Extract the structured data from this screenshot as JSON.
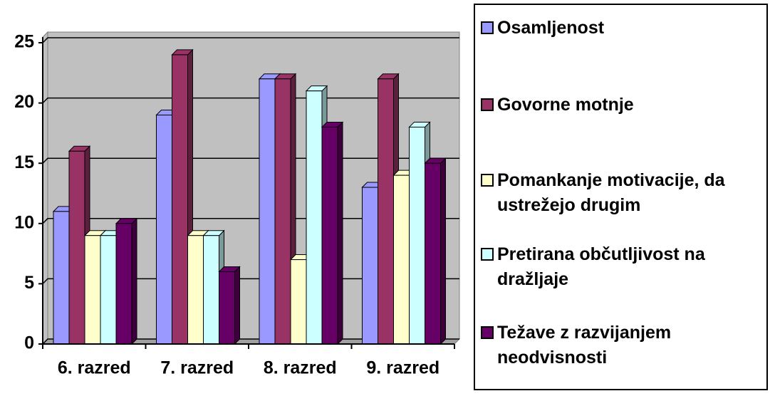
{
  "chart_data": {
    "type": "bar3d",
    "categories": [
      "6. razred",
      "7. razred",
      "8. razred",
      "9. razred"
    ],
    "series": [
      {
        "name": "Osamljenost",
        "color": "#9999ff",
        "values": [
          11,
          19,
          22,
          13
        ]
      },
      {
        "name": "Govorne motnje",
        "color": "#993366",
        "values": [
          16,
          24,
          22,
          22
        ]
      },
      {
        "name": "Pomankanje motivacije, da ustrežejo drugim",
        "color": "#ffffcc",
        "values": [
          9,
          9,
          7,
          14
        ]
      },
      {
        "name": "Pretirana občutljivost na dražljaje",
        "color": "#ccffff",
        "values": [
          9,
          9,
          21,
          18
        ]
      },
      {
        "name": "Težave z razvijanjem neodvisnosti",
        "color": "#660066",
        "values": [
          10,
          6,
          18,
          15
        ]
      }
    ],
    "ylim": [
      0,
      25
    ],
    "yticks": [
      0,
      5,
      10,
      15,
      20,
      25
    ],
    "grid": true,
    "legend": "right"
  }
}
